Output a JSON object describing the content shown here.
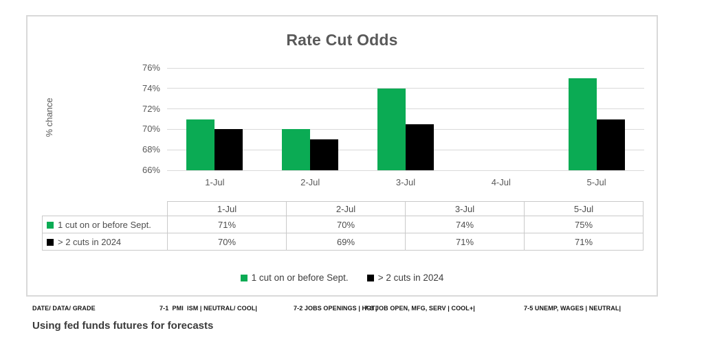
{
  "chart": {
    "title": "Rate Cut Odds",
    "y_axis_title": "% chance"
  },
  "chart_data": {
    "type": "bar",
    "title": "Rate Cut Odds",
    "xlabel": "",
    "ylabel": "% chance",
    "categories": [
      "1-Jul",
      "2-Jul",
      "3-Jul",
      "4-Jul",
      "5-Jul"
    ],
    "series": [
      {
        "name": "1 cut on or before Sept.",
        "color": "#0BAB54",
        "values": [
          71,
          70,
          74,
          null,
          75
        ]
      },
      {
        "name": "> 2 cuts in 2024",
        "color": "#000000",
        "values": [
          70,
          69,
          70.5,
          null,
          71
        ]
      }
    ],
    "ylim": [
      66,
      76
    ],
    "yticks": [
      76,
      74,
      72,
      70,
      68,
      66
    ],
    "ytick_labels": [
      "76%",
      "74%",
      "72%",
      "70%",
      "68%",
      "66%"
    ],
    "gridlines": true,
    "legend_position": "bottom"
  },
  "table": {
    "columns": [
      "1-Jul",
      "2-Jul",
      "3-Jul",
      "5-Jul"
    ],
    "rows": [
      {
        "label": "1 cut on or before Sept.",
        "color": "#0BAB54",
        "values": [
          "71%",
          "70%",
          "74%",
          "75%"
        ]
      },
      {
        "label": "> 2 cuts in 2024",
        "color": "#000000",
        "values": [
          "70%",
          "69%",
          "71%",
          "71%"
        ]
      }
    ]
  },
  "legend": {
    "items": [
      {
        "label": "1 cut on or before Sept.",
        "color": "#0BAB54"
      },
      {
        "label": "> 2 cuts in 2024",
        "color": "#000000"
      }
    ]
  },
  "footer": {
    "grade_heading": "DATE/ DATA/ GRADE",
    "entries": [
      "7-1  PMI  ISM | NEUTRAL/ COOL|",
      "7-2 JOBS OPENINGS | HOT|",
      "7-3 JOB OPEN, MFG, SERV | COOL+|",
      "7-5 UNEMP, WAGES | NEUTRAL|"
    ],
    "note": "Using fed funds futures for forecasts"
  }
}
